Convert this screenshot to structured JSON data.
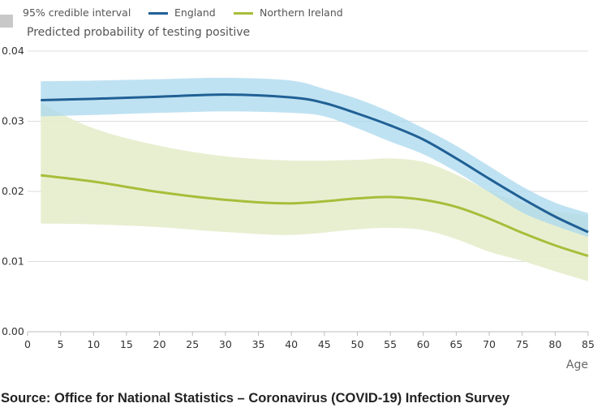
{
  "legend": {
    "ci_label": "95% credible interval",
    "colors": {
      "ci": "#c8c8c8"
    }
  },
  "source": "Source: Office for National Statistics – Coronavirus (COVID-19) Infection Survey",
  "chart_data": {
    "type": "line",
    "title": "",
    "ylabel": "Predicted probability of testing positive",
    "xlabel": "Age",
    "xlim": [
      0,
      85
    ],
    "ylim": [
      0,
      0.04
    ],
    "xticks": [
      "0",
      "5",
      "10",
      "15",
      "20",
      "25",
      "30",
      "35",
      "40",
      "45",
      "50",
      "55",
      "60",
      "65",
      "70",
      "75",
      "80",
      "85"
    ],
    "yticks": [
      "0.00",
      "0.01",
      "0.02",
      "0.03",
      "0.04"
    ],
    "grid": "horizontal",
    "legend_position": "top-left",
    "series": [
      {
        "name": "England",
        "color": "#206095",
        "band_color": "#a9d8ee",
        "x": [
          2,
          10,
          20,
          30,
          40,
          45,
          50,
          55,
          60,
          65,
          70,
          75,
          80,
          85
        ],
        "y": [
          0.033,
          0.0332,
          0.0335,
          0.0338,
          0.0334,
          0.0326,
          0.0311,
          0.0294,
          0.0274,
          0.0247,
          0.0218,
          0.019,
          0.0164,
          0.0142
        ],
        "upper": [
          0.0357,
          0.0358,
          0.036,
          0.0362,
          0.0358,
          0.0346,
          0.0332,
          0.0313,
          0.029,
          0.0265,
          0.0236,
          0.0207,
          0.0184,
          0.0169
        ],
        "lower": [
          0.0307,
          0.0309,
          0.0312,
          0.0314,
          0.0312,
          0.0307,
          0.029,
          0.0271,
          0.0253,
          0.0228,
          0.0199,
          0.017,
          0.0151,
          0.0135
        ]
      },
      {
        "name": "Northern Ireland",
        "color": "#a8bd3a",
        "band_color": "#e6edcc",
        "x": [
          2,
          10,
          20,
          30,
          40,
          50,
          55,
          60,
          65,
          70,
          75,
          80,
          85
        ],
        "y": [
          0.0223,
          0.0214,
          0.0199,
          0.0188,
          0.0183,
          0.019,
          0.0192,
          0.0188,
          0.0178,
          0.0161,
          0.0141,
          0.0123,
          0.0108
        ],
        "upper": [
          0.0326,
          0.029,
          0.0265,
          0.025,
          0.0244,
          0.0245,
          0.0247,
          0.0242,
          0.0224,
          0.0201,
          0.0184,
          0.0172,
          0.0166
        ],
        "lower": [
          0.0154,
          0.0153,
          0.0149,
          0.0142,
          0.0138,
          0.0146,
          0.0148,
          0.0145,
          0.0132,
          0.0114,
          0.0101,
          0.0086,
          0.0072
        ]
      }
    ]
  }
}
